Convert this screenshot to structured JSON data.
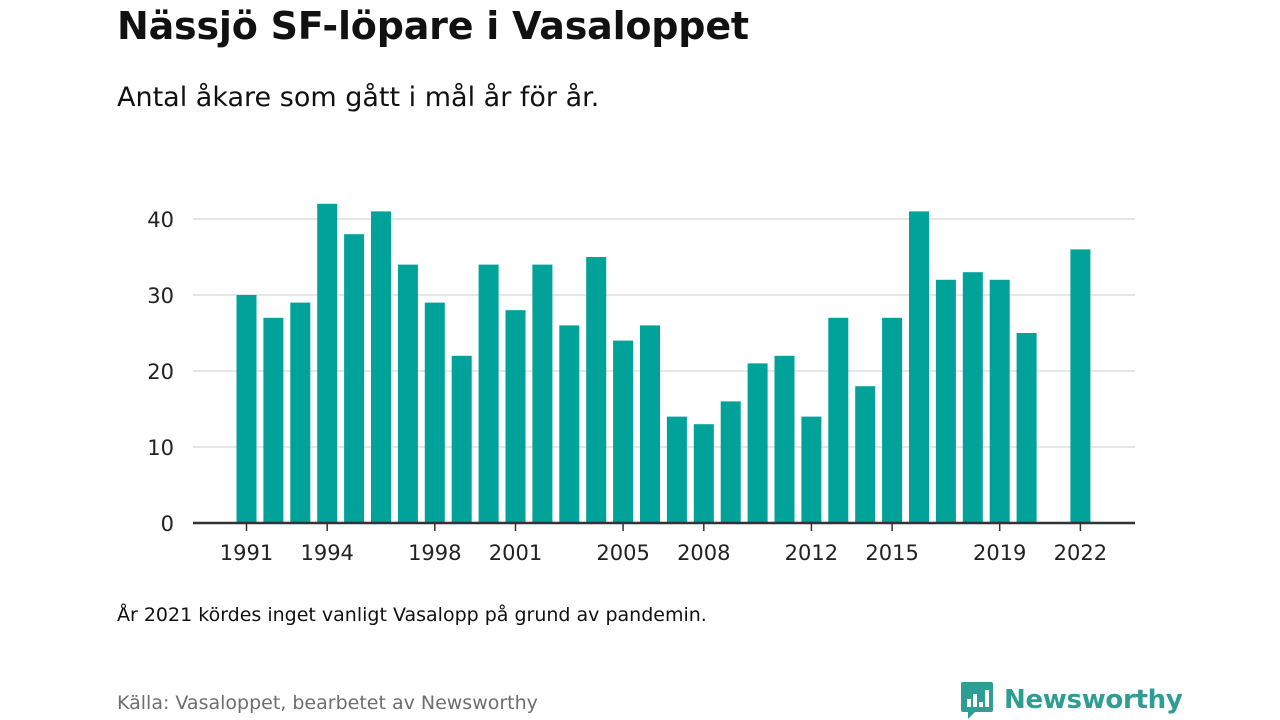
{
  "header": {
    "title": "Nässjö SF-löpare i Vasaloppet",
    "subtitle": "Antal åkare som gått i mål år för år."
  },
  "footer": {
    "note": "År 2021 kördes inget vanligt Vasalopp på grund av pandemin.",
    "source": "Källa: Vasaloppet, bearbetet av Newsworthy",
    "brand": "Newsworthy",
    "brand_icon": "newsworthy-logo-icon"
  },
  "colors": {
    "bar": "#00a29a",
    "brand": "#2e9e95",
    "grid": "#dddddd",
    "axis": "#333333"
  },
  "chart_data": {
    "type": "bar",
    "title": "Nässjö SF-löpare i Vasaloppet",
    "subtitle": "Antal åkare som gått i mål år för år.",
    "xlabel": "",
    "ylabel": "",
    "ylim": [
      0,
      44
    ],
    "yticks": [
      0,
      10,
      20,
      30,
      40
    ],
    "grid": true,
    "categories": [
      "1991",
      "1992",
      "1993",
      "1994",
      "1995",
      "1996",
      "1997",
      "1998",
      "1999",
      "2000",
      "2001",
      "2002",
      "2003",
      "2004",
      "2005",
      "2006",
      "2007",
      "2008",
      "2009",
      "2010",
      "2011",
      "2012",
      "2013",
      "2014",
      "2015",
      "2016",
      "2017",
      "2018",
      "2019",
      "2020",
      "2021",
      "2022"
    ],
    "values": [
      30,
      27,
      29,
      42,
      38,
      41,
      34,
      29,
      22,
      34,
      28,
      34,
      26,
      35,
      24,
      26,
      14,
      13,
      16,
      21,
      22,
      14,
      27,
      18,
      27,
      41,
      32,
      33,
      32,
      25,
      null,
      36
    ],
    "xtick_labels": [
      "1991",
      "1994",
      "1998",
      "2001",
      "2005",
      "2008",
      "2012",
      "2015",
      "2019",
      "2022"
    ]
  }
}
